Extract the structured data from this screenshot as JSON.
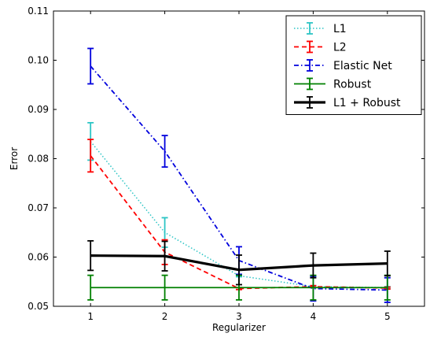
{
  "chart_data": {
    "type": "line",
    "title": "",
    "xlabel": "Regularizer",
    "ylabel": "Error",
    "xlim": [
      0.5,
      5.5
    ],
    "ylim": [
      0.05,
      0.11
    ],
    "x": [
      1,
      2,
      3,
      4,
      5
    ],
    "x_tick_labels": [
      "1",
      "2",
      "3",
      "4",
      "5"
    ],
    "y_ticks": [
      0.05,
      0.06,
      0.07,
      0.08,
      0.09,
      0.1,
      0.11
    ],
    "y_tick_labels": [
      "0.05",
      "0.06",
      "0.07",
      "0.08",
      "0.09",
      "0.10",
      "0.11"
    ],
    "grid": false,
    "legend_position": "top-right",
    "series": [
      {
        "name": "L1",
        "color": "#2cc5c5",
        "style": "dotted",
        "values": [
          0.0835,
          0.065,
          0.0562,
          0.054,
          0.0538
        ],
        "errors": [
          0.0038,
          0.003,
          0.0002,
          0.0002,
          0.0002
        ]
      },
      {
        "name": "L2",
        "color": "#ff0000",
        "style": "dashed",
        "values": [
          0.0806,
          0.061,
          0.0536,
          0.054,
          0.0537
        ],
        "errors": [
          0.0033,
          0.0025,
          0.0002,
          0.0002,
          0.0002
        ]
      },
      {
        "name": "Elastic Net",
        "color": "#0000dd",
        "style": "dashdot",
        "values": [
          0.0988,
          0.0815,
          0.0593,
          0.0536,
          0.0533
        ],
        "errors": [
          0.0036,
          0.0032,
          0.0028,
          0.0025,
          0.0025
        ]
      },
      {
        "name": "Robust",
        "color": "#008000",
        "style": "solid",
        "values": [
          0.0538,
          0.0538,
          0.0538,
          0.0538,
          0.0538
        ],
        "errors": [
          0.0025,
          0.0025,
          0.0025,
          0.0025,
          0.0025
        ]
      },
      {
        "name": "L1 + Robust",
        "color": "#000000",
        "style": "solid-thick",
        "values": [
          0.0603,
          0.0602,
          0.0574,
          0.0583,
          0.0587
        ],
        "errors": [
          0.003,
          0.003,
          0.003,
          0.0025,
          0.0025
        ]
      }
    ]
  }
}
